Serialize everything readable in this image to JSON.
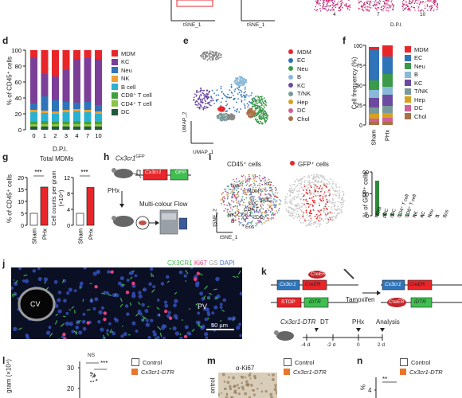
{
  "panels": {
    "d": "d",
    "e": "e",
    "f": "f",
    "g": "g",
    "h": "h",
    "i": "i",
    "j": "j",
    "k": "k",
    "l": "l",
    "m": "m",
    "n": "n"
  },
  "top": {
    "tsne_label_left": "tSNE_1",
    "tsne_label_mid": "tSNE_1",
    "dpi_labels": [
      "4",
      "7",
      "10"
    ],
    "dpi_caption": "D.P.I."
  },
  "panel_d": {
    "ylabel": "% of CD45⁺ cells",
    "xlabel": "D.P.I.",
    "legend": [
      "MDM",
      "KC",
      "Neu",
      "NK",
      "B cell",
      "CD8⁺ T cell",
      "CD4⁺ T cell",
      "DC"
    ],
    "colors": [
      "#e8262a",
      "#7b3f98",
      "#2f74b8",
      "#f0a030",
      "#2ab0d0",
      "#40a040",
      "#8bc34a",
      "#1f5a3a"
    ],
    "chart_data": {
      "type": "bar",
      "stacked": true,
      "categories": [
        "0",
        "1",
        "2",
        "3",
        "4",
        "7",
        "10"
      ],
      "ylim": [
        0,
        100
      ],
      "yticks": [
        0,
        20,
        40,
        60,
        80,
        100
      ],
      "series": [
        {
          "name": "DC",
          "values": [
            4,
            4,
            4,
            4,
            4,
            4,
            4
          ]
        },
        {
          "name": "CD4⁺ T cell",
          "values": [
            3,
            3,
            3,
            3,
            3,
            3,
            3
          ]
        },
        {
          "name": "CD8⁺ T cell",
          "values": [
            3,
            4,
            3,
            3,
            4,
            3,
            3
          ]
        },
        {
          "name": "B cell",
          "values": [
            12,
            10,
            10,
            12,
            12,
            12,
            10
          ]
        },
        {
          "name": "NK",
          "values": [
            3,
            3,
            3,
            3,
            3,
            3,
            3
          ]
        },
        {
          "name": "Neu",
          "values": [
            8,
            18,
            14,
            10,
            8,
            10,
            8
          ]
        },
        {
          "name": "KC",
          "values": [
            57,
            28,
            30,
            40,
            55,
            55,
            58
          ]
        },
        {
          "name": "MDM",
          "values": [
            10,
            30,
            33,
            25,
            11,
            10,
            11
          ]
        }
      ]
    }
  },
  "panel_e": {
    "xlabel": "UMAP_1",
    "ylabel": "UMAP_2",
    "legend": [
      "MDM",
      "EC",
      "Neu",
      "B",
      "KC",
      "T/NK",
      "Hep",
      "DC",
      "Chol"
    ],
    "colors": [
      "#e8262a",
      "#2f74b8",
      "#3a9a4a",
      "#8ab8d8",
      "#6b4aa0",
      "#7a9a9a",
      "#d8a020",
      "#d06098",
      "#a87048"
    ]
  },
  "panel_f": {
    "ylabel": "Cell frequency (%)",
    "legend": [
      "MDM",
      "EC",
      "Neu",
      "B",
      "KC",
      "T/NK",
      "Hep",
      "DC",
      "Chol"
    ],
    "colors": [
      "#e8262a",
      "#2f74b8",
      "#3a9a4a",
      "#8ab8d8",
      "#6b4aa0",
      "#7a9a9a",
      "#d8a020",
      "#d06098",
      "#a87048"
    ],
    "chart_data": {
      "type": "bar",
      "stacked": true,
      "categories": [
        "Sham",
        "PHx"
      ],
      "ylim": [
        0,
        100
      ],
      "yticks": [
        0,
        25,
        50,
        75,
        100
      ],
      "series": [
        {
          "name": "Chol",
          "values": [
            4,
            4
          ]
        },
        {
          "name": "DC",
          "values": [
            4,
            5
          ]
        },
        {
          "name": "Hep",
          "values": [
            6,
            6
          ]
        },
        {
          "name": "T/NK",
          "values": [
            8,
            9
          ]
        },
        {
          "name": "KC",
          "values": [
            12,
            14
          ]
        },
        {
          "name": "B",
          "values": [
            10,
            10
          ]
        },
        {
          "name": "Neu",
          "values": [
            12,
            16
          ]
        },
        {
          "name": "EC",
          "values": [
            38,
            22
          ]
        },
        {
          "name": "MDM",
          "values": [
            4,
            14
          ]
        }
      ]
    }
  },
  "panel_g": {
    "title": "Total MDMs",
    "sig1": "***",
    "sig2": "***",
    "ylabel1": "% of CD45⁺ cells",
    "ylabel2": "Cell counts per gram (×10⁴)",
    "categories": [
      "Sham",
      "PHx"
    ],
    "chart_data": [
      {
        "type": "bar",
        "categories": [
          "Sham",
          "PHx"
        ],
        "values": [
          5,
          16
        ],
        "ylim": [
          0,
          20
        ],
        "yticks": [
          0,
          5,
          10,
          15,
          20
        ]
      },
      {
        "type": "bar",
        "categories": [
          "Sham",
          "PHx"
        ],
        "values": [
          3,
          9.5
        ],
        "ylim": [
          0,
          12
        ],
        "yticks": [
          0,
          4,
          8,
          12
        ]
      }
    ]
  },
  "panel_h": {
    "mouse_label": "Cx3cr1",
    "mouse_sup": "GFP",
    "gene": "Cx3cr1",
    "reporter": "GFP",
    "phx": "PHx",
    "flow": "Multi-colour Flow"
  },
  "panel_i": {
    "title_left": "CD45⁺ cells",
    "title_right": "GFP⁺ cells",
    "xlabel": "tSNE_1",
    "ylabel": "tSNE_2",
    "cluster_labels": [
      "Neu",
      "MDM",
      "KC",
      "pDC",
      "cDC",
      "CD4 T",
      "CD8 T",
      "NK",
      "B",
      "Eos",
      "cDC"
    ],
    "bar_ylabel": "% of GFP⁺ cells",
    "chart_data": {
      "type": "bar",
      "categories": [
        "MDM",
        "pDC",
        "cDC",
        "CD4⁺ T cell",
        "CD8⁺ T cell",
        "NK",
        "KC",
        "Neu",
        "B",
        "Eos"
      ],
      "values": [
        80,
        6,
        5,
        3,
        3,
        2,
        2,
        1,
        1,
        1
      ],
      "ylim": [
        0,
        100
      ],
      "yticks": [
        0,
        50,
        100
      ]
    }
  },
  "panel_j": {
    "channels": [
      "CX3CR1",
      "Ki67",
      "GS",
      "DAPI"
    ],
    "channel_colors": [
      "#3fbf4f",
      "#e8407a",
      "#a0a0a0",
      "#4a70d8"
    ],
    "cv": "CV",
    "pv": "PV",
    "scale": "50 µm"
  },
  "panel_k": {
    "gene": "Cx3cr1",
    "creer": "CreER",
    "stop": "STOP",
    "idtr": "iDTR",
    "tamoxifen": "Tamoxifen",
    "mouse": "Cx3cr1-DTR",
    "steps": [
      "DT",
      "PHx",
      "Analysis"
    ],
    "timeline": [
      "-4 d",
      "-2 d",
      "0",
      "2 d"
    ]
  },
  "panel_l": {
    "ylabel": "gram (×10⁴)",
    "yticks": [
      "30",
      "20"
    ],
    "ns": "NS",
    "sig": "***",
    "legend": [
      "Control",
      "Cx3cr1-DTR"
    ]
  },
  "panel_m": {
    "title": "α-Ki67",
    "side": "ontrol",
    "legend": [
      "Control",
      "Cx3cr1-DTR"
    ]
  },
  "panel_n": {
    "sig": "**",
    "ylabel": "%",
    "ytick": "4",
    "legend": [
      "Control",
      "Cx3cr1-DTR"
    ]
  }
}
